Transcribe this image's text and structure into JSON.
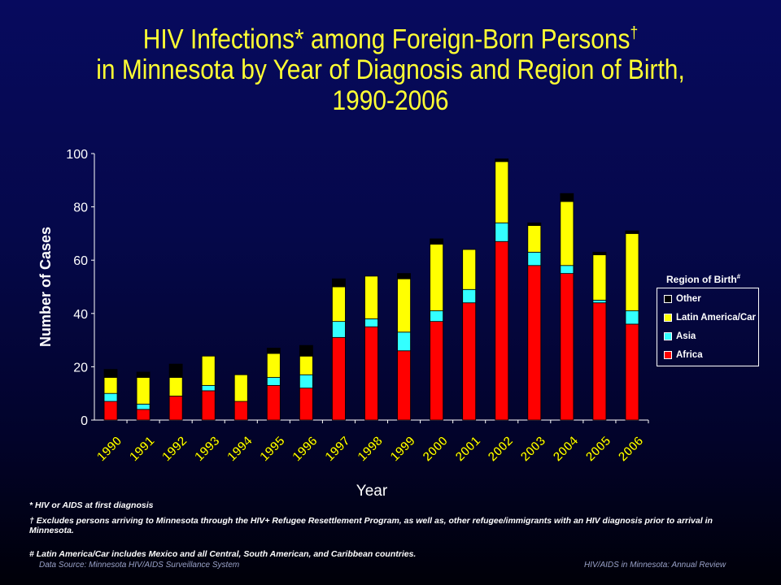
{
  "title": {
    "line1": "HIV Infections* among Foreign-Born Persons",
    "line1_mark": "†",
    "line2": "in Minnesota by Year of Diagnosis and Region of Birth,",
    "line3": "1990-2006"
  },
  "legend": {
    "title": "Region of Birth",
    "title_mark": "#"
  },
  "footnotes": {
    "star": "* HIV or AIDS at first diagnosis",
    "dagger": "† Excludes persons arriving to Minnesota through the HIV+ Refugee Resettlement Program, as well as, other refugee/immigrants with an HIV diagnosis prior to arrival in Minnesota.",
    "hash": "# Latin America/Car includes Mexico and all Central, South American, and Caribbean countries."
  },
  "source": {
    "left": "Data Source: Minnesota HIV/AIDS Surveillance System",
    "right": "HIV/AIDS in Minnesota: Annual Review"
  },
  "colors": {
    "Africa": "#ff0000",
    "Asia": "#33ffff",
    "Latin America/Car": "#ffff00",
    "Other": "#000000",
    "title": "#ffff33",
    "background": "#05084a"
  },
  "chart_data": {
    "type": "bar",
    "stacked": true,
    "xlabel": "Year",
    "ylabel": "Number of Cases",
    "ylim": [
      0,
      100
    ],
    "yticks": [
      0,
      20,
      40,
      60,
      80,
      100
    ],
    "grid": false,
    "legend_position": "right",
    "categories": [
      "1990",
      "1991",
      "1992",
      "1993",
      "1994",
      "1995",
      "1996",
      "1997",
      "1998",
      "1999",
      "2000",
      "2001",
      "2002",
      "2003",
      "2004",
      "2005",
      "2006"
    ],
    "series": [
      {
        "name": "Africa",
        "values": [
          7,
          4,
          9,
          11,
          7,
          13,
          12,
          31,
          35,
          26,
          37,
          44,
          67,
          58,
          55,
          44,
          36
        ]
      },
      {
        "name": "Asia",
        "values": [
          3,
          2,
          0,
          2,
          0,
          3,
          5,
          6,
          3,
          7,
          4,
          5,
          7,
          5,
          3,
          1,
          5
        ]
      },
      {
        "name": "Latin America/Car",
        "values": [
          6,
          10,
          7,
          11,
          10,
          9,
          7,
          13,
          16,
          20,
          25,
          15,
          23,
          10,
          24,
          17,
          29
        ]
      },
      {
        "name": "Other",
        "values": [
          3,
          2,
          5,
          0,
          0,
          2,
          4,
          3,
          0,
          2,
          2,
          0,
          1,
          1,
          3,
          1,
          1
        ]
      }
    ]
  }
}
